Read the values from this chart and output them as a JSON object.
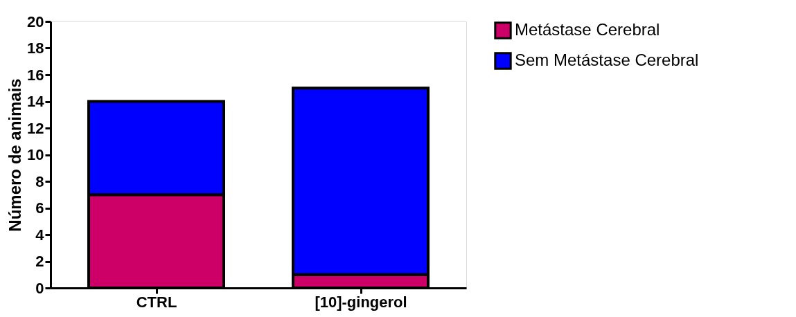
{
  "chart_data": {
    "type": "bar",
    "stacked": true,
    "ylabel": "Número de animais",
    "categories": [
      "CTRL",
      "[10]-gingerol"
    ],
    "series": [
      {
        "name": "Metástase Cerebral",
        "color": "#cc0066",
        "values": [
          7,
          1
        ]
      },
      {
        "name": "Sem  Metástase Cerebral",
        "color": "#0000ff",
        "values": [
          7,
          14
        ]
      }
    ],
    "ylim": [
      0,
      20
    ],
    "yticks": [
      0,
      2,
      4,
      6,
      8,
      10,
      12,
      14,
      16,
      18,
      20
    ],
    "grid": false,
    "legend": "top right"
  }
}
